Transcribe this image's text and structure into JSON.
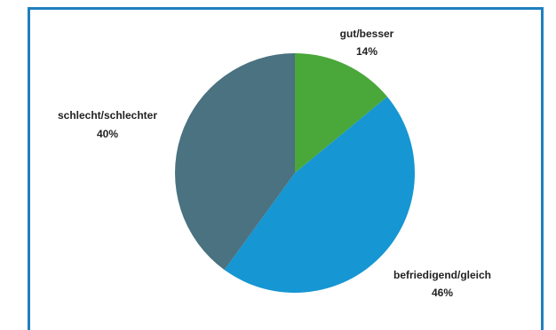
{
  "chart_data": {
    "type": "pie",
    "slices": [
      {
        "label": "gut/besser",
        "value": 14,
        "value_label": "14%",
        "color": "#4aa73a"
      },
      {
        "label": "befriedigend/gleich",
        "value": 46,
        "value_label": "46%",
        "color": "#1696d2"
      },
      {
        "label": "schlecht/schlechter",
        "value": 40,
        "value_label": "40%",
        "color": "#4a7280"
      }
    ],
    "start": "12 o'clock",
    "direction": "clockwise",
    "legend": "none"
  }
}
